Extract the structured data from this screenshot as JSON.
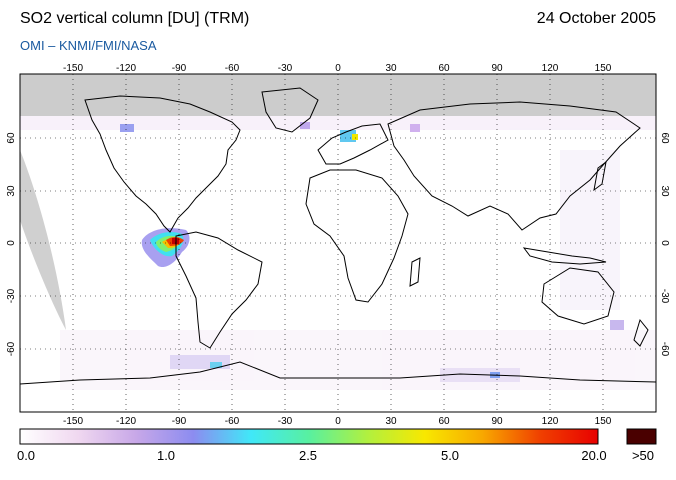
{
  "header": {
    "title": "SO2 vertical column [DU] (TRM)",
    "date": "24 October 2005",
    "credit": "OMI  –  KNMI/FMI/NASA"
  },
  "map": {
    "projection": "equirectangular",
    "lon_ticks": [
      "-150",
      "-120",
      "-90",
      "-60",
      "-30",
      "0",
      "30",
      "60",
      "90",
      "120",
      "150"
    ],
    "lat_ticks": [
      "60",
      "30",
      "0",
      "-30",
      "-60"
    ],
    "no_data_color": "#cccccc",
    "coastline_color": "#000000",
    "grid_style": "dotted"
  },
  "colorbar": {
    "labels": [
      "0.0",
      "1.0",
      "2.5",
      "5.0",
      "20.0"
    ],
    "overflow_label": ">50",
    "overflow_color": "#4a0000",
    "colors": [
      "#ffffff",
      "#f0d8f0",
      "#c8a8e8",
      "#8c8cf0",
      "#40e8f8",
      "#58f0a0",
      "#b0f040",
      "#f8e800",
      "#f8a800",
      "#f04000",
      "#e80000"
    ]
  }
}
